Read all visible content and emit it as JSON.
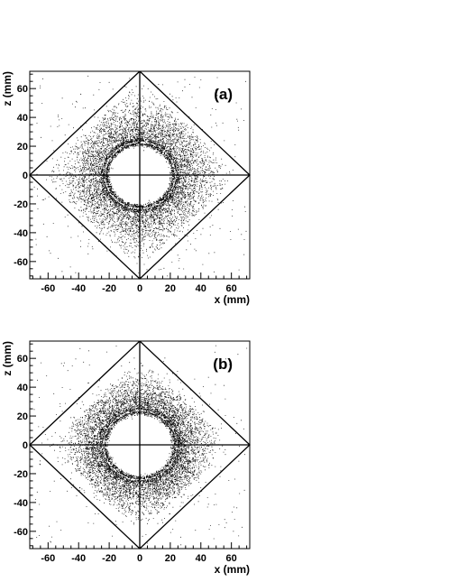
{
  "chart_data": [
    {
      "type": "scatter",
      "panel_label": "(a)",
      "xlabel": "x (mm)",
      "ylabel": "z (mm)",
      "xlim": [
        -72,
        72
      ],
      "ylim": [
        -72,
        72
      ],
      "xticks": [
        -60,
        -40,
        -20,
        0,
        20,
        40,
        60
      ],
      "yticks": [
        -60,
        -40,
        -20,
        0,
        20,
        40,
        60
      ],
      "xtick_labels": [
        "-60",
        "-40",
        "-20",
        "0",
        "20",
        "40",
        "60"
      ],
      "ytick_labels": [
        "-60",
        "-40",
        "-20",
        "0",
        "20",
        "40",
        "60"
      ],
      "overlay_lines": [
        {
          "points": [
            [
              0,
              72
            ],
            [
              72,
              0
            ],
            [
              0,
              -72
            ],
            [
              -72,
              0
            ],
            [
              0,
              72
            ]
          ]
        },
        {
          "points": [
            [
              -72,
              0
            ],
            [
              72,
              0
            ]
          ]
        },
        {
          "points": [
            [
              0,
              -72
            ],
            [
              0,
              72
            ]
          ]
        }
      ],
      "distribution": {
        "hole_radius": 17,
        "ring_inner_radius": 21,
        "ring_outer_radius": 25,
        "halo_scale": 16,
        "halo_extent_along_axes": 55,
        "grid": false
      }
    },
    {
      "type": "scatter",
      "panel_label": "(b)",
      "xlabel": "x (mm)",
      "ylabel": "z (mm)",
      "xlim": [
        -72,
        72
      ],
      "ylim": [
        -72,
        72
      ],
      "xticks": [
        -60,
        -40,
        -20,
        0,
        20,
        40,
        60
      ],
      "yticks": [
        -60,
        -40,
        -20,
        0,
        20,
        40,
        60
      ],
      "xtick_labels": [
        "-60",
        "-40",
        "-20",
        "0",
        "20",
        "40",
        "60"
      ],
      "ytick_labels": [
        "-60",
        "-40",
        "-20",
        "0",
        "20",
        "40",
        "60"
      ],
      "overlay_lines": [
        {
          "points": [
            [
              0,
              72
            ],
            [
              72,
              0
            ],
            [
              0,
              -72
            ],
            [
              -72,
              0
            ],
            [
              0,
              72
            ]
          ]
        },
        {
          "points": [
            [
              -72,
              0
            ],
            [
              72,
              0
            ]
          ]
        },
        {
          "points": [
            [
              0,
              -72
            ],
            [
              0,
              72
            ]
          ]
        }
      ],
      "distribution": {
        "hole_radius": 18,
        "ring_inner_radius": 22,
        "ring_outer_radius": 26,
        "halo_scale": 13,
        "halo_extent_along_axes": 50,
        "grid": false
      }
    }
  ]
}
